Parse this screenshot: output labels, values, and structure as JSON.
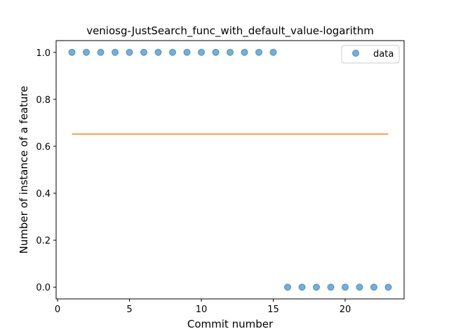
{
  "chart_data": {
    "type": "scatter",
    "title": "veniosg-JustSearch_func_with_default_value-logarithm",
    "xlabel": "Commit number",
    "ylabel": "Number of instance of a feature",
    "xlim": [
      -0.1,
      24.1
    ],
    "ylim": [
      -0.05,
      1.05
    ],
    "xticks": [
      0,
      5,
      10,
      15,
      20
    ],
    "yticks": [
      0.0,
      0.2,
      0.4,
      0.6,
      0.8,
      1.0
    ],
    "ytick_labels": [
      "0.0",
      "0.2",
      "0.4",
      "0.6",
      "0.8",
      "1.0"
    ],
    "grid": false,
    "legend_position": "top-right",
    "series": [
      {
        "name": "data",
        "kind": "scatter",
        "color": "#1f77b4",
        "x": [
          1,
          2,
          3,
          4,
          5,
          6,
          7,
          8,
          9,
          10,
          11,
          12,
          13,
          14,
          15,
          16,
          17,
          18,
          19,
          20,
          21,
          22,
          23
        ],
        "y": [
          1,
          1,
          1,
          1,
          1,
          1,
          1,
          1,
          1,
          1,
          1,
          1,
          1,
          1,
          1,
          0,
          0,
          0,
          0,
          0,
          0,
          0,
          0
        ]
      },
      {
        "kind": "line",
        "color": "#ff7f0e",
        "x": [
          1,
          23
        ],
        "y": [
          0.652,
          0.652
        ]
      }
    ]
  }
}
